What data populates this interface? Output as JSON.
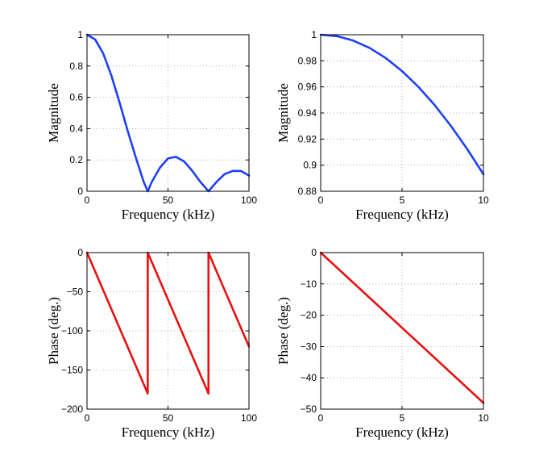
{
  "chart_data": [
    {
      "id": "magnitude-wide",
      "type": "line",
      "title": "",
      "xlabel": "Frequency (kHz)",
      "ylabel": "Magnitude",
      "xlim": [
        0,
        100
      ],
      "ylim": [
        0,
        1
      ],
      "xticks": [
        0,
        50,
        100
      ],
      "yticks": [
        0,
        0.2,
        0.4,
        0.6,
        0.8,
        1
      ],
      "xtick_labels": [
        "0",
        "50",
        "100"
      ],
      "ytick_labels": [
        "0",
        "0.2",
        "0.4",
        "0.6",
        "0.8",
        "1"
      ],
      "grid": true,
      "series": [
        {
          "name": "magnitude",
          "color": "#1f3ff5",
          "x": [
            0,
            5,
            10,
            15,
            20,
            25,
            30,
            35,
            37.5,
            40,
            45,
            50,
            55,
            60,
            65,
            70,
            75,
            80,
            85,
            90,
            95,
            100
          ],
          "y": [
            1,
            0.97,
            0.88,
            0.74,
            0.57,
            0.39,
            0.22,
            0.06,
            0,
            0.06,
            0.15,
            0.21,
            0.22,
            0.19,
            0.13,
            0.06,
            0,
            0.06,
            0.11,
            0.13,
            0.13,
            0.1
          ]
        }
      ]
    },
    {
      "id": "magnitude-zoom",
      "type": "line",
      "title": "",
      "xlabel": "Frequency (kHz)",
      "ylabel": "Magnitude",
      "xlim": [
        0,
        10
      ],
      "ylim": [
        0.88,
        1
      ],
      "xticks": [
        0,
        5,
        10
      ],
      "yticks": [
        0.88,
        0.9,
        0.92,
        0.94,
        0.96,
        0.98,
        1
      ],
      "xtick_labels": [
        "0",
        "5",
        "10"
      ],
      "ytick_labels": [
        "0.88",
        "0.9",
        "0.92",
        "0.94",
        "0.96",
        "0.98",
        "1"
      ],
      "grid": true,
      "series": [
        {
          "name": "magnitude",
          "color": "#1f3ff5",
          "x": [
            0,
            1,
            2,
            3,
            4,
            5,
            6,
            7,
            8,
            9,
            10
          ],
          "y": [
            1,
            0.9989,
            0.9955,
            0.9899,
            0.9821,
            0.9721,
            0.9601,
            0.9461,
            0.9301,
            0.9124,
            0.893
          ]
        }
      ]
    },
    {
      "id": "phase-wide",
      "type": "line",
      "title": "",
      "xlabel": "Frequency (kHz)",
      "ylabel": "Phase (deg.)",
      "xlim": [
        0,
        100
      ],
      "ylim": [
        -200,
        0
      ],
      "xticks": [
        0,
        50,
        100
      ],
      "yticks": [
        -200,
        -150,
        -100,
        -50,
        0
      ],
      "xtick_labels": [
        "0",
        "50",
        "100"
      ],
      "ytick_labels": [
        "−200",
        "−150",
        "−100",
        "−50",
        "0"
      ],
      "grid": true,
      "series": [
        {
          "name": "phase",
          "color": "#e81010",
          "x": [
            0,
            37.5,
            37.5,
            75,
            75,
            100
          ],
          "y": [
            0,
            -180,
            0,
            -180,
            0,
            -120
          ]
        }
      ]
    },
    {
      "id": "phase-zoom",
      "type": "line",
      "title": "",
      "xlabel": "Frequency (kHz)",
      "ylabel": "Phase (deg.)",
      "xlim": [
        0,
        10
      ],
      "ylim": [
        -50,
        0
      ],
      "xticks": [
        0,
        5,
        10
      ],
      "yticks": [
        -50,
        -40,
        -30,
        -20,
        -10,
        0
      ],
      "xtick_labels": [
        "0",
        "5",
        "10"
      ],
      "ytick_labels": [
        "−50",
        "−40",
        "−30",
        "−20",
        "−10",
        "0"
      ],
      "grid": true,
      "series": [
        {
          "name": "phase",
          "color": "#e81010",
          "x": [
            0,
            10
          ],
          "y": [
            0,
            -48
          ]
        }
      ]
    }
  ]
}
